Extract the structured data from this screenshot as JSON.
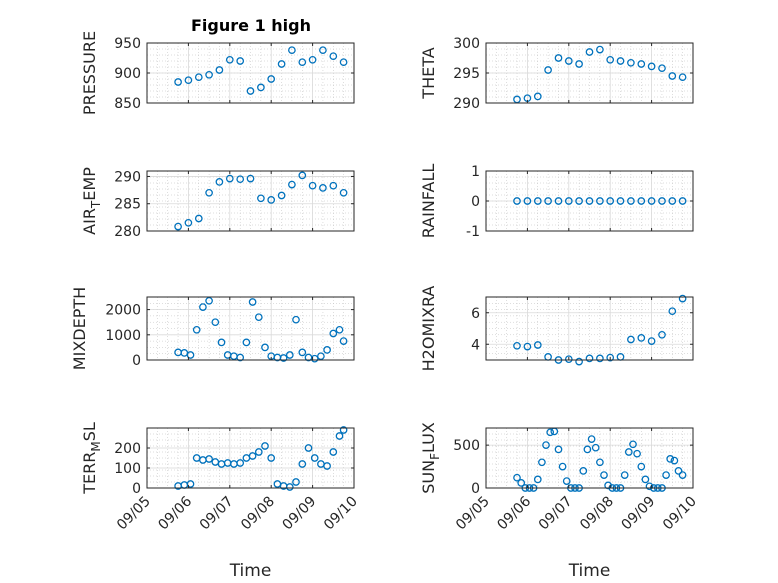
{
  "figure_title": "Figure 1 high",
  "marker_color": "#0072BD",
  "x_tick_labels": [
    "09/05",
    "09/06",
    "09/07",
    "09/08",
    "09/09",
    "09/10"
  ],
  "x_axis_label": "Time",
  "chart_data": [
    {
      "type": "scatter",
      "ylabel": "PRESSURE",
      "title": "Figure 1 high",
      "ylim": [
        850,
        950
      ],
      "yticks": [
        850,
        900,
        950
      ],
      "ytick_labels": [
        "850",
        "900",
        "950"
      ],
      "xlim": [
        0,
        5
      ],
      "grid": true,
      "show_x_ticklabels": false,
      "x": [
        0.75,
        1.0,
        1.25,
        1.5,
        1.75,
        2.0,
        2.25,
        2.5,
        2.75,
        3.0,
        3.25,
        3.5,
        3.75,
        4.0,
        4.25,
        4.5,
        4.75
      ],
      "y": [
        885,
        888,
        893,
        897,
        905,
        922,
        920,
        870,
        876,
        890,
        915,
        938,
        918,
        922,
        938,
        928,
        918
      ]
    },
    {
      "type": "scatter",
      "ylabel": "THETA",
      "ylim": [
        290,
        300
      ],
      "yticks": [
        290,
        295,
        300
      ],
      "ytick_labels": [
        "290",
        "295",
        "300"
      ],
      "xlim": [
        0,
        5
      ],
      "grid": true,
      "show_x_ticklabels": false,
      "x": [
        0.75,
        1.0,
        1.25,
        1.5,
        1.75,
        2.0,
        2.25,
        2.5,
        2.75,
        3.0,
        3.25,
        3.5,
        3.75,
        4.0,
        4.25,
        4.5,
        4.75
      ],
      "y": [
        290.6,
        290.8,
        291.1,
        295.5,
        297.5,
        297.0,
        296.5,
        298.5,
        298.9,
        297.2,
        297.0,
        296.7,
        296.5,
        296.1,
        295.8,
        294.5,
        294.3
      ]
    },
    {
      "type": "scatter",
      "ylabel": "AIR_TEMP",
      "ylabel_main": "AIR",
      "ylabel_sub": "T",
      "ylabel_rest": "EMP",
      "ylim": [
        280,
        291
      ],
      "yticks": [
        280,
        285,
        290
      ],
      "ytick_labels": [
        "280",
        "285",
        "290"
      ],
      "xlim": [
        0,
        5
      ],
      "grid": true,
      "show_x_ticklabels": false,
      "x": [
        0.75,
        1.0,
        1.25,
        1.5,
        1.75,
        2.0,
        2.25,
        2.5,
        2.75,
        3.0,
        3.25,
        3.5,
        3.75,
        4.0,
        4.25,
        4.5,
        4.75
      ],
      "y": [
        280.8,
        281.5,
        282.3,
        287.0,
        289.0,
        289.6,
        289.5,
        289.6,
        286.0,
        285.7,
        286.5,
        288.5,
        290.2,
        288.3,
        287.9,
        288.3,
        287.0
      ]
    },
    {
      "type": "scatter",
      "ylabel": "RAINFALL",
      "ylim": [
        -1,
        1
      ],
      "yticks": [
        -1,
        0,
        1
      ],
      "ytick_labels": [
        "-1",
        "0",
        "1"
      ],
      "xlim": [
        0,
        5
      ],
      "grid": true,
      "show_x_ticklabels": false,
      "x": [
        0.75,
        1.0,
        1.25,
        1.5,
        1.75,
        2.0,
        2.25,
        2.5,
        2.75,
        3.0,
        3.25,
        3.5,
        3.75,
        4.0,
        4.25,
        4.5,
        4.75
      ],
      "y": [
        0,
        0,
        0,
        0,
        0,
        0,
        0,
        0,
        0,
        0,
        0,
        0,
        0,
        0,
        0,
        0,
        0
      ]
    },
    {
      "type": "scatter",
      "ylabel": "MIXDEPTH",
      "ylim": [
        0,
        2500
      ],
      "yticks": [
        0,
        1000,
        2000
      ],
      "ytick_labels": [
        "0",
        "1000",
        "2000"
      ],
      "xlim": [
        0,
        5
      ],
      "grid": true,
      "show_x_ticklabels": false,
      "x": [
        0.75,
        0.9,
        1.05,
        1.2,
        1.35,
        1.5,
        1.65,
        1.8,
        1.95,
        2.1,
        2.25,
        2.4,
        2.55,
        2.7,
        2.85,
        3.0,
        3.15,
        3.3,
        3.45,
        3.6,
        3.75,
        3.9,
        4.05,
        4.2,
        4.35,
        4.5,
        4.65,
        4.75
      ],
      "y": [
        300,
        280,
        200,
        1200,
        2100,
        2350,
        1500,
        700,
        200,
        150,
        100,
        700,
        2300,
        1700,
        500,
        150,
        100,
        80,
        200,
        1600,
        300,
        100,
        50,
        150,
        400,
        1050,
        1200,
        750
      ]
    },
    {
      "type": "scatter",
      "ylabel": "H2OMIXRA",
      "ylim": [
        3,
        7
      ],
      "yticks": [
        4,
        6
      ],
      "ytick_labels": [
        "4",
        "6"
      ],
      "xlim": [
        0,
        5
      ],
      "grid": true,
      "show_x_ticklabels": false,
      "x": [
        0.75,
        1.0,
        1.25,
        1.5,
        1.75,
        2.0,
        2.25,
        2.5,
        2.75,
        3.0,
        3.25,
        3.5,
        3.75,
        4.0,
        4.25,
        4.5,
        4.75
      ],
      "y": [
        3.9,
        3.85,
        3.95,
        3.2,
        3.0,
        3.05,
        2.9,
        3.1,
        3.1,
        3.15,
        3.2,
        4.3,
        4.4,
        4.2,
        4.6,
        6.1,
        6.9
      ]
    },
    {
      "type": "scatter",
      "ylabel": "TERR_MSL",
      "ylabel_main": "TERR",
      "ylabel_sub": "M",
      "ylabel_rest": "SL",
      "ylim": [
        0,
        300
      ],
      "yticks": [
        0,
        100,
        200
      ],
      "ytick_labels": [
        "0",
        "100",
        "200"
      ],
      "xlim": [
        0,
        5
      ],
      "grid": true,
      "show_x_ticklabels": true,
      "x": [
        0.75,
        0.9,
        1.05,
        1.2,
        1.35,
        1.5,
        1.65,
        1.8,
        1.95,
        2.1,
        2.25,
        2.4,
        2.55,
        2.7,
        2.85,
        3.0,
        3.15,
        3.3,
        3.45,
        3.6,
        3.75,
        3.9,
        4.05,
        4.2,
        4.35,
        4.5,
        4.65,
        4.75
      ],
      "y": [
        10,
        15,
        20,
        150,
        140,
        145,
        130,
        120,
        125,
        120,
        125,
        150,
        160,
        180,
        210,
        150,
        20,
        10,
        5,
        30,
        120,
        200,
        150,
        120,
        110,
        180,
        260,
        290
      ]
    },
    {
      "type": "scatter",
      "ylabel": "SUN_FLUX",
      "ylabel_main": "SUN",
      "ylabel_sub": "F",
      "ylabel_rest": "LUX",
      "ylim": [
        0,
        700
      ],
      "yticks": [
        0,
        500
      ],
      "ytick_labels": [
        "0",
        "500"
      ],
      "xlim": [
        0,
        5
      ],
      "grid": true,
      "show_x_ticklabels": true,
      "x": [
        0.75,
        0.85,
        0.95,
        1.05,
        1.15,
        1.25,
        1.35,
        1.45,
        1.55,
        1.65,
        1.75,
        1.85,
        1.95,
        2.05,
        2.15,
        2.25,
        2.35,
        2.45,
        2.55,
        2.65,
        2.75,
        2.85,
        2.95,
        3.05,
        3.15,
        3.25,
        3.35,
        3.45,
        3.55,
        3.65,
        3.75,
        3.85,
        3.95,
        4.05,
        4.15,
        4.25,
        4.35,
        4.45,
        4.55,
        4.65,
        4.75
      ],
      "y": [
        120,
        60,
        0,
        0,
        0,
        100,
        300,
        500,
        650,
        660,
        450,
        250,
        80,
        0,
        0,
        0,
        200,
        450,
        570,
        470,
        300,
        150,
        30,
        0,
        0,
        0,
        150,
        420,
        510,
        400,
        250,
        100,
        20,
        0,
        0,
        0,
        150,
        340,
        320,
        200,
        150
      ]
    }
  ]
}
